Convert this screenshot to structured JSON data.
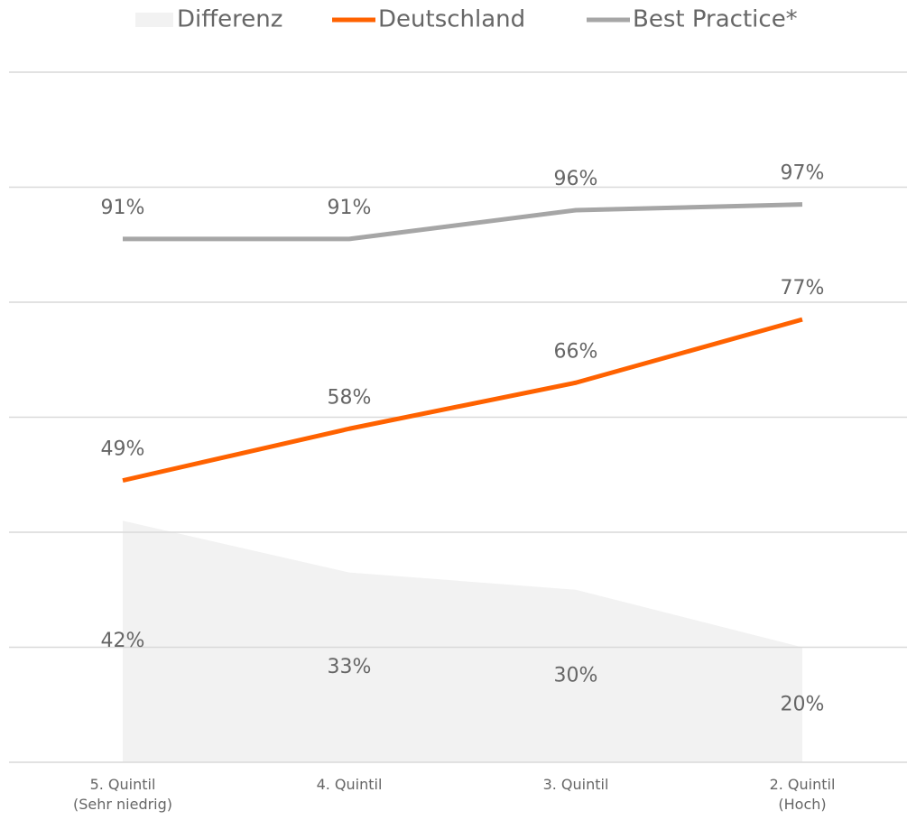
{
  "chart_data": {
    "type": "line",
    "categories": [
      [
        "5. Quintil",
        "(Sehr niedrig)"
      ],
      [
        "4. Quintil"
      ],
      [
        "3. Quintil"
      ],
      [
        "2. Quintil",
        "(Hoch)"
      ]
    ],
    "series": [
      {
        "name": "Differenz",
        "type": "area",
        "color": "#f2f2f2",
        "values": [
          42,
          33,
          30,
          20
        ],
        "value_labels": [
          "42%",
          "33%",
          "30%",
          "20%"
        ]
      },
      {
        "name": "Deutschland",
        "type": "line",
        "color": "#ff6200",
        "values": [
          49,
          58,
          66,
          77
        ],
        "value_labels": [
          "49%",
          "58%",
          "66%",
          "77%"
        ]
      },
      {
        "name": "Best Practice*",
        "type": "line",
        "color": "#a6a6a6",
        "values": [
          91,
          91,
          96,
          97
        ],
        "value_labels": [
          "91%",
          "91%",
          "96%",
          "97%"
        ]
      }
    ],
    "ylim": [
      0,
      120
    ],
    "yticks": [
      0,
      20,
      40,
      60,
      80,
      100,
      120
    ],
    "grid": true,
    "legend": "top"
  }
}
